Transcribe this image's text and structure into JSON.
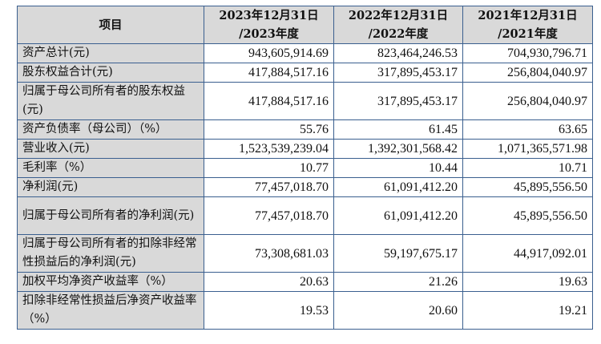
{
  "headers": [
    "项目",
    "2023年12月31日\n/2023年度",
    "2022年12月31日\n/2022年度",
    "2021年12月31日\n/2021年度"
  ],
  "rows": [
    {
      "label": "资产总计(元)",
      "values": [
        "943,605,914.69",
        "823,464,246.53",
        "704,930,796.71"
      ]
    },
    {
      "label": "股东权益合计(元)",
      "values": [
        "417,884,517.16",
        "317,895,453.17",
        "256,804,040.97"
      ]
    },
    {
      "label": "归属于母公司所有者的股东权益(元)",
      "values": [
        "417,884,517.16",
        "317,895,453.17",
        "256,804,040.97"
      ]
    },
    {
      "label": "资产负债率（母公司）（%）",
      "values": [
        "55.76",
        "61.45",
        "63.65"
      ]
    },
    {
      "label": "营业收入(元)",
      "values": [
        "1,523,539,239.04",
        "1,392,301,568.42",
        "1,071,365,571.98"
      ]
    },
    {
      "label": "毛利率（%）",
      "values": [
        "10.77",
        "10.44",
        "10.71"
      ]
    },
    {
      "label": "净利润(元)",
      "values": [
        "77,457,018.70",
        "61,091,412.20",
        "45,895,556.50"
      ]
    },
    {
      "label": "归属于母公司所有者的净利润(元)",
      "values": [
        "77,457,018.70",
        "61,091,412.20",
        "45,895,556.50"
      ]
    },
    {
      "label": "归属于母公司所有者的扣除非经常性损益后的净利润(元)",
      "values": [
        "73,308,681.03",
        "59,197,675.17",
        "44,917,092.01"
      ]
    },
    {
      "label": "加权平均净资产收益率（%）",
      "values": [
        "20.63",
        "21.26",
        "19.63"
      ]
    },
    {
      "label": "扣除非经常性损益后净资产收益率（%）",
      "values": [
        "19.53",
        "20.60",
        "19.21"
      ]
    }
  ]
}
